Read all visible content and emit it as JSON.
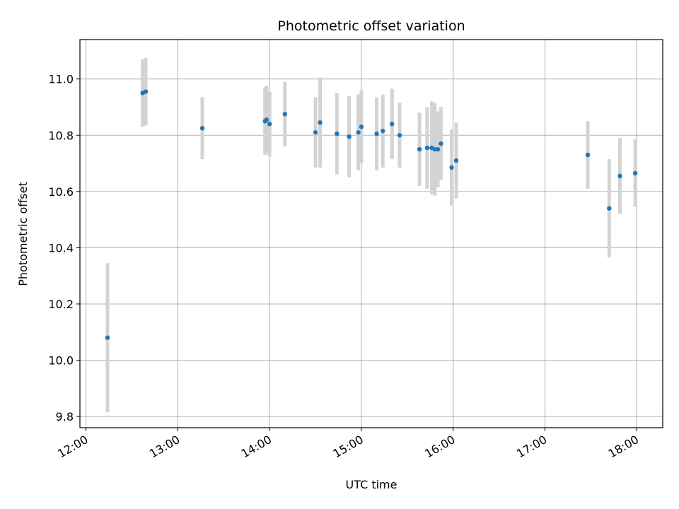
{
  "chart_data": {
    "type": "scatter",
    "title": "Photometric offset variation",
    "xlabel": "UTC time",
    "ylabel": "Photometric offset",
    "grid": true,
    "xlim": [
      "11:56",
      "18:17"
    ],
    "ylim": [
      9.76,
      11.14
    ],
    "x_ticks": [
      "12:00",
      "13:00",
      "14:00",
      "15:00",
      "16:00",
      "17:00",
      "18:00"
    ],
    "y_ticks": [
      "9.8",
      "10.0",
      "10.2",
      "10.4",
      "10.6",
      "10.8",
      "11.0"
    ],
    "colors": {
      "point": "#1f77b4",
      "error_bar": "#d3d3d3",
      "grid": "#b0b0b0"
    },
    "series": [
      {
        "x": [
          "12:14",
          "12:37",
          "12:39",
          "13:16",
          "13:57",
          "13:58",
          "14:00",
          "14:10",
          "14:30",
          "14:33",
          "14:44",
          "14:52",
          "14:58",
          "15:00",
          "15:10",
          "15:14",
          "15:20",
          "15:25",
          "15:38",
          "15:43",
          "15:46",
          "15:48",
          "15:50",
          "15:52",
          "15:59",
          "16:02",
          "17:28",
          "17:42",
          "17:49",
          "17:59"
        ],
        "y": [
          10.08,
          10.95,
          10.955,
          10.825,
          10.85,
          10.855,
          10.84,
          10.875,
          10.81,
          10.845,
          10.805,
          10.795,
          10.81,
          10.83,
          10.805,
          10.815,
          10.84,
          10.8,
          10.75,
          10.755,
          10.755,
          10.75,
          10.75,
          10.77,
          10.685,
          10.71,
          10.73,
          10.54,
          10.655,
          10.665
        ],
        "yerr": [
          0.265,
          0.12,
          0.12,
          0.11,
          0.12,
          0.12,
          0.115,
          0.115,
          0.125,
          0.16,
          0.145,
          0.145,
          0.135,
          0.13,
          0.13,
          0.13,
          0.125,
          0.115,
          0.13,
          0.145,
          0.165,
          0.165,
          0.135,
          0.13,
          0.135,
          0.135,
          0.12,
          0.175,
          0.135,
          0.12
        ]
      }
    ]
  }
}
